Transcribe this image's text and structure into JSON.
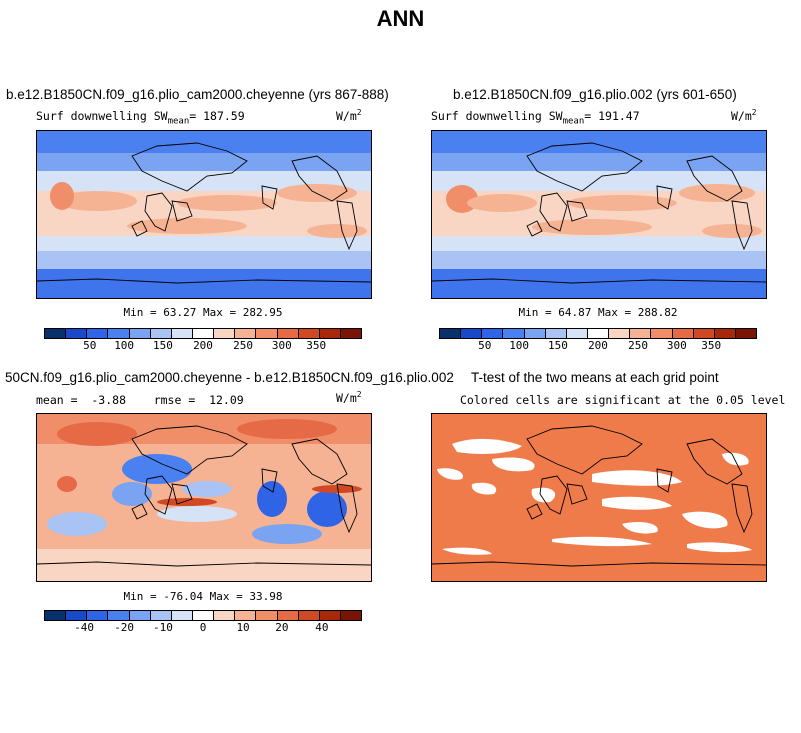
{
  "page_title": "ANN",
  "panels": [
    {
      "title": "b.e12.B1850CN.f09_g16.plio_cam2000.cheyenne (yrs 867-888)",
      "subtitle_left": "Surf downwelling SW",
      "subtitle_sub": "mean",
      "subtitle_value": "= 187.59",
      "units": "W/m",
      "units_sup": "2",
      "min_max": "Min =  63.27 Max = 282.95",
      "ticks": [
        "50",
        "100",
        "150",
        "200",
        "250",
        "300",
        "350"
      ]
    },
    {
      "title": "b.e12.B1850CN.f09_g16.plio.002 (yrs 601-650)",
      "subtitle_left": "Surf downwelling SW",
      "subtitle_sub": "mean",
      "subtitle_value": "= 191.47",
      "units": "W/m",
      "units_sup": "2",
      "min_max": "Min =  64.87 Max = 288.82",
      "ticks": [
        "50",
        "100",
        "150",
        "200",
        "250",
        "300",
        "350"
      ]
    },
    {
      "title": "50CN.f09_g16.plio_cam2000.cheyenne - b.e12.B1850CN.f09_g16.plio.002",
      "subtitle_left": "mean =  -3.88    rmse =  12.09",
      "units": "W/m",
      "units_sup": "2",
      "min_max": "Min = -76.04 Max =  33.98",
      "ticks": [
        "-40",
        "-20",
        "-10",
        "0",
        "10",
        "20",
        "40"
      ]
    },
    {
      "title": "T-test of the two means at each grid point",
      "subtitle_left": "Colored cells are significant at the 0.05 level"
    }
  ],
  "colors": {
    "colorbar": [
      "#08306b",
      "#1948c8",
      "#2f64e6",
      "#4a80f0",
      "#7aa3f2",
      "#a9c4f4",
      "#d6e2f6",
      "#ffffff",
      "#f9d6c4",
      "#f5b394",
      "#ef8e68",
      "#e56a45",
      "#cf4a24",
      "#a8280c",
      "#7a1404"
    ],
    "ttest_fill": "#ef7b4a",
    "land_outline": "#000000"
  }
}
